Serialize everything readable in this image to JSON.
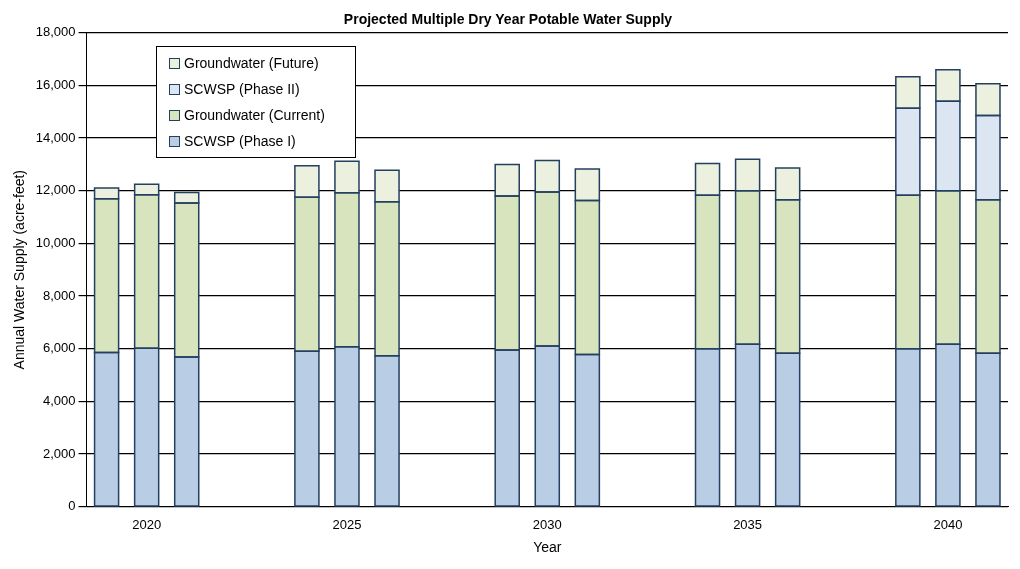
{
  "chart_data": {
    "type": "bar",
    "title": "Projected Multiple Dry Year Potable Water Supply",
    "xlabel": "Year",
    "ylabel": "Annual Water Supply (acre-feet)",
    "categories": [
      null,
      "2020",
      null,
      null,
      null,
      null,
      "2025",
      null,
      null,
      null,
      null,
      "2030",
      null,
      null,
      null,
      null,
      "2035",
      null,
      null,
      null,
      null,
      "2040",
      null
    ],
    "stacked": true,
    "ylim": [
      0,
      18000
    ],
    "yticks": [
      0,
      {
        "value": 2000,
        "label": "2,000"
      },
      {
        "value": 4000,
        "label": "4,000"
      },
      {
        "value": 6000,
        "label": "6,000"
      },
      {
        "value": 8000,
        "label": "8,000"
      },
      {
        "value": 10000,
        "label": "10,000"
      },
      {
        "value": 12000,
        "label": "12,000"
      },
      {
        "value": 14000,
        "label": "14,000"
      },
      {
        "value": 16000,
        "label": "16,000"
      },
      {
        "value": 18000,
        "label": "18,000"
      }
    ],
    "grid": "y",
    "legend": "top left",
    "series": [
      {
        "name": "SCWSP (Phase I)",
        "color": "#b9cde5",
        "values": [
          5850,
          6020,
          5680,
          null,
          null,
          5900,
          6070,
          5730,
          null,
          null,
          5950,
          6100,
          5780,
          null,
          null,
          6000,
          6170,
          5830,
          null,
          null,
          6000,
          6170,
          5830
        ]
      },
      {
        "name": "Groundwater (Current)",
        "color": "#d7e4bd",
        "values": [
          5850,
          5830,
          5850,
          null,
          null,
          5850,
          5850,
          5850,
          null,
          null,
          5850,
          5850,
          5850,
          null,
          null,
          5830,
          5830,
          5830,
          null,
          null,
          5830,
          5830,
          5830
        ]
      },
      {
        "name": "SCWSP (Phase II)",
        "color": "#dce6f2",
        "values": [
          null,
          null,
          null,
          null,
          null,
          null,
          null,
          null,
          null,
          null,
          null,
          null,
          null,
          null,
          null,
          null,
          null,
          null,
          null,
          null,
          3300,
          3400,
          3200
        ]
      },
      {
        "name": "Groundwater (Future)",
        "color": "#ebf1de",
        "values": [
          400,
          400,
          400,
          null,
          null,
          1200,
          1200,
          1200,
          null,
          null,
          1200,
          1200,
          1200,
          null,
          null,
          1200,
          1200,
          1200,
          null,
          null,
          1200,
          1200,
          1200
        ]
      }
    ]
  }
}
